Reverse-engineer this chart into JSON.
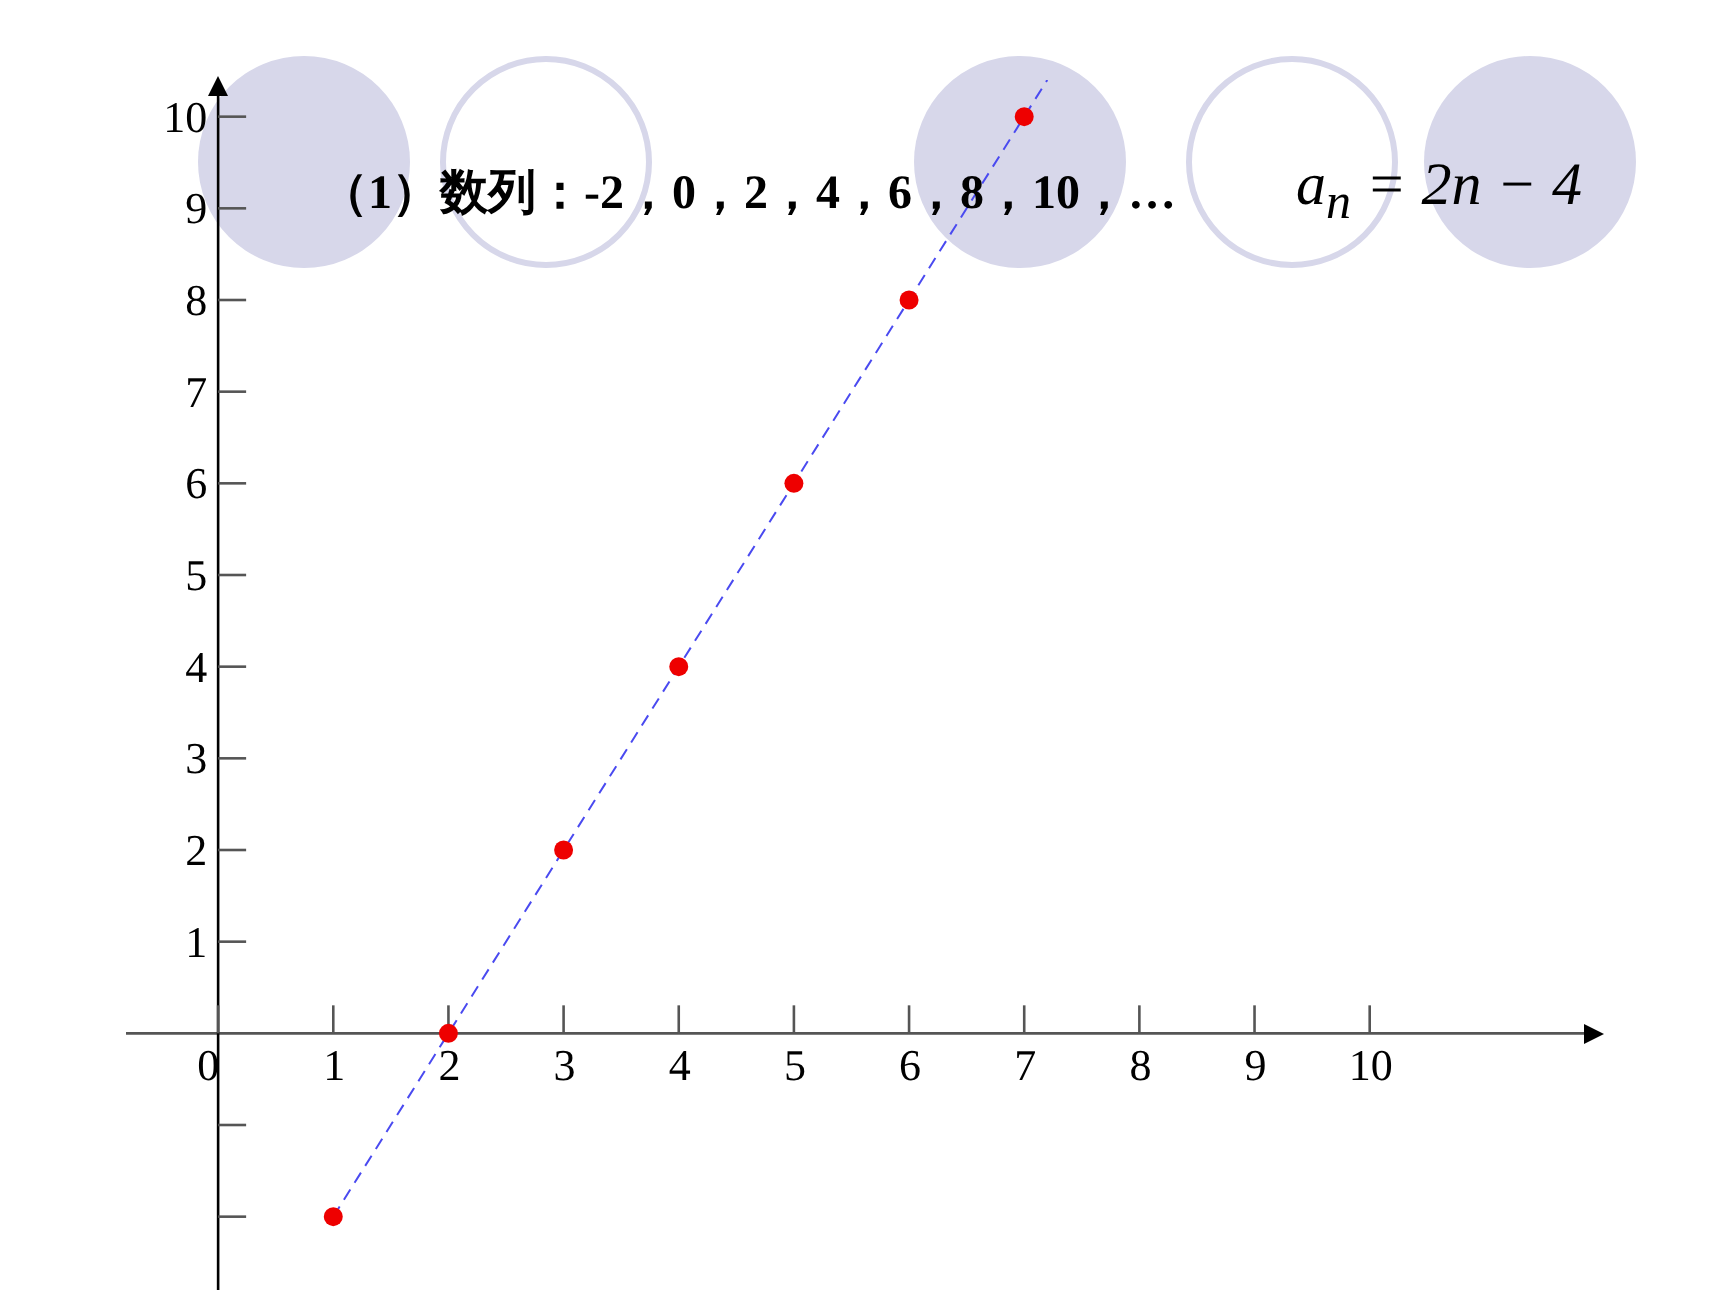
{
  "chart_data": {
    "type": "scatter",
    "title": "（1）数列：-2，0，2，4，6，8，10，…",
    "annotations": [
      "a$_{n}$ = 2n − 4"
    ],
    "xlim": [
      -0.8,
      12
    ],
    "ylim": [
      -2.8,
      10.4
    ],
    "xticks": [
      0,
      1,
      2,
      3,
      4,
      5,
      6,
      7,
      8,
      9,
      10
    ],
    "yticks": [
      {
        "value": -2,
        "label": null
      },
      {
        "value": -1,
        "label": null
      },
      1,
      2,
      3,
      4,
      5,
      6,
      7,
      8,
      9,
      10
    ],
    "grid": false,
    "series": [
      {
        "type": "line",
        "color": "#4a4af0",
        "line_style": "dashed",
        "marker": "none",
        "x": [
          1,
          7.2
        ],
        "values": [
          -2,
          10.4
        ]
      },
      {
        "color": "#ee0000",
        "marker": "circle",
        "x": [
          1,
          2,
          3,
          4,
          5,
          6,
          7
        ],
        "values": [
          -2,
          0,
          2,
          4,
          6,
          8,
          10
        ]
      }
    ]
  }
}
